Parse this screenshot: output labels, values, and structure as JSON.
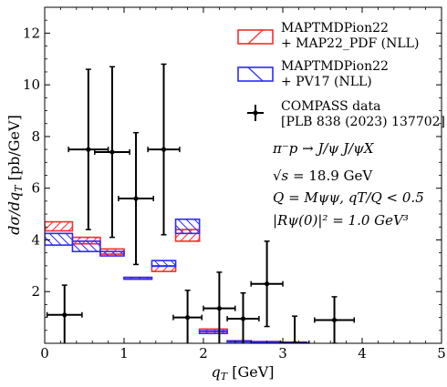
{
  "chart_data": {
    "type": "step-errorbar",
    "xlabel": "q_T [GeV]",
    "ylabel": "dσ/dq_T [pb/GeV]",
    "xlim": [
      0,
      5
    ],
    "ylim": [
      0,
      13
    ],
    "xticks": [
      0,
      1,
      2,
      3,
      4,
      5
    ],
    "yticks": [
      2,
      4,
      6,
      8,
      10,
      12
    ],
    "grid": false,
    "legend_position": "top-right",
    "legend": {
      "map22": {
        "name": "MAPTMDPion22",
        "sub": "+ MAP22_PDF (NLL)"
      },
      "pv17": {
        "name": "MAPTMDPion22",
        "sub": "+ PV17 (NLL)"
      },
      "compass": {
        "name": "COMPASS data",
        "sub": "[PLB 838 (2023) 137702]"
      }
    },
    "annotations": {
      "process": "π⁻p → J/ψ J/ψX",
      "sqrt_s_lhs": "√s",
      "sqrt_s_rhs": "= 18.9 GeV",
      "q_line": "Q = Mψψ, qT/Q < 0.5",
      "r_line": "|Rψ(0)|² = 1.0 GeV³"
    },
    "bin_edges": [
      0,
      0.35,
      0.7,
      1.0,
      1.35,
      1.65,
      1.95,
      2.3,
      2.6,
      2.95,
      3.3
    ],
    "series": [
      {
        "id": "map22",
        "color": "#ff2a2a",
        "hatch": "forward",
        "lower": [
          4.35,
          3.85,
          3.45,
          2.48,
          2.78,
          3.95,
          0.45,
          0.07,
          0.05,
          0.04
        ],
        "upper": [
          4.7,
          4.1,
          3.65,
          2.55,
          3.0,
          4.4,
          0.55,
          0.1,
          0.07,
          0.05
        ]
      },
      {
        "id": "pv17",
        "color": "#2a2aff",
        "hatch": "back",
        "lower": [
          3.8,
          3.55,
          3.38,
          2.48,
          2.98,
          4.25,
          0.38,
          0.06,
          0.04,
          0.03
        ],
        "upper": [
          4.25,
          3.95,
          3.55,
          2.55,
          3.2,
          4.8,
          0.48,
          0.09,
          0.06,
          0.04
        ]
      }
    ],
    "data_points": [
      {
        "x": 0.25,
        "xerr": 0.22,
        "y": 1.1,
        "yerr": 1.15
      },
      {
        "x": 0.55,
        "xerr": 0.25,
        "y": 7.5,
        "yerr": 3.1
      },
      {
        "x": 0.85,
        "xerr": 0.22,
        "y": 7.4,
        "yerr": 3.3
      },
      {
        "x": 1.15,
        "xerr": 0.22,
        "y": 5.6,
        "yerr": 2.55
      },
      {
        "x": 1.5,
        "xerr": 0.2,
        "y": 7.5,
        "yerr": 3.3
      },
      {
        "x": 1.8,
        "xerr": 0.18,
        "y": 1.0,
        "yerr": 1.05
      },
      {
        "x": 2.2,
        "xerr": 0.2,
        "y": 1.35,
        "yerr": 1.4
      },
      {
        "x": 2.5,
        "xerr": 0.2,
        "y": 0.95,
        "yerr": 1.0
      },
      {
        "x": 2.8,
        "xerr": 0.2,
        "y": 2.3,
        "yerr": 1.65
      },
      {
        "x": 3.15,
        "xerr": 0.18,
        "y": 0.0,
        "yerr": 1.05
      },
      {
        "x": 3.65,
        "xerr": 0.25,
        "y": 0.9,
        "yerr": 0.9
      }
    ]
  }
}
